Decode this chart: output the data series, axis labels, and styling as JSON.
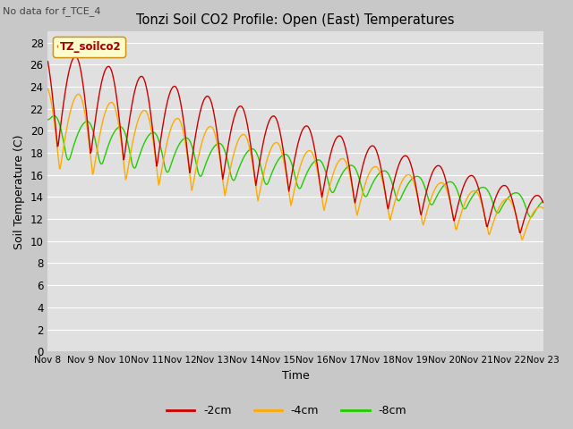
{
  "title": "Tonzi Soil CO2 Profile: Open (East) Temperatures",
  "subtitle": "No data for f_TCE_4",
  "ylabel": "Soil Temperature (C)",
  "xlabel": "Time",
  "legend_label": "TZ_soilco2",
  "series_labels": [
    "-2cm",
    "-4cm",
    "-8cm"
  ],
  "series_colors": [
    "#cc0000",
    "#ffaa00",
    "#22cc00"
  ],
  "ylim": [
    0,
    29
  ],
  "yticks": [
    0,
    2,
    4,
    6,
    8,
    10,
    12,
    14,
    16,
    18,
    20,
    22,
    24,
    26,
    28
  ],
  "fig_bg_color": "#c8c8c8",
  "plot_bg_color": "#e0e0e0",
  "grid_color": "#ffffff",
  "n_days": 15,
  "start_day": 8
}
